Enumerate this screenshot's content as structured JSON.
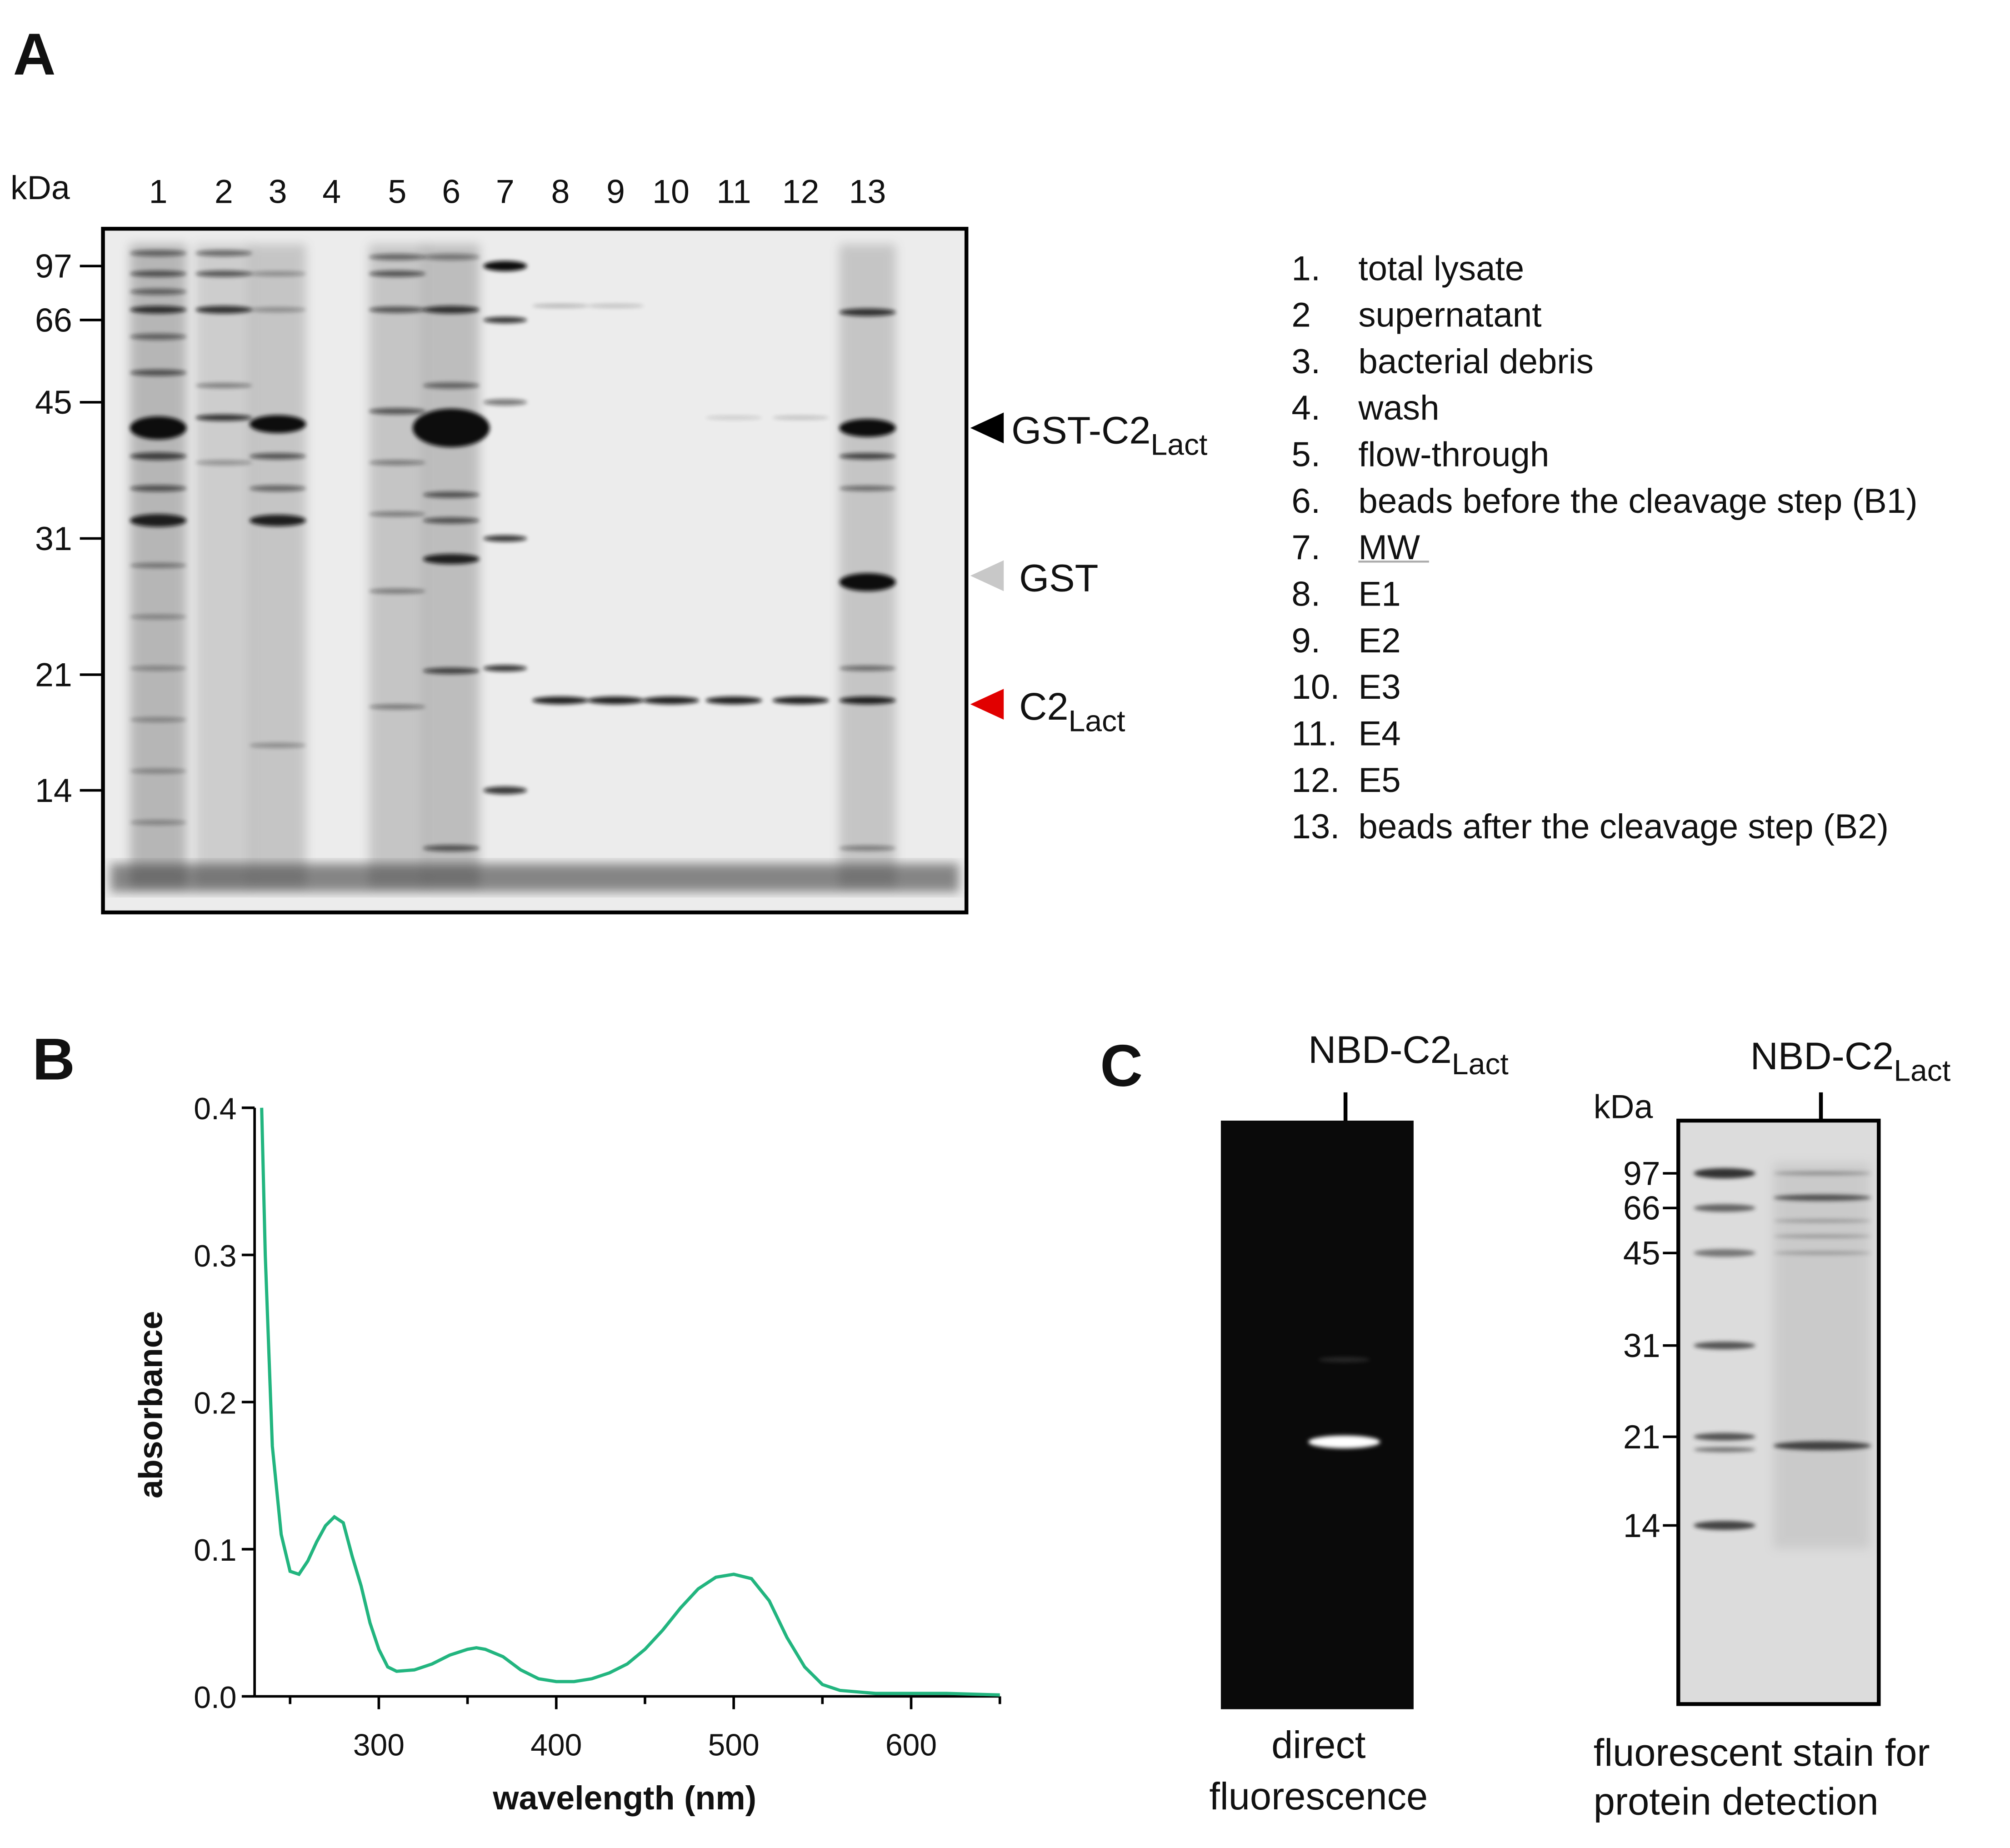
{
  "panel_labels": [
    "A",
    "B",
    "C"
  ],
  "panel_a": {
    "unit": "kDa",
    "lanes": [
      "1",
      "2",
      "3",
      "4",
      "5",
      "6",
      "7",
      "8",
      "9",
      "10",
      "11",
      "12",
      "13"
    ],
    "mw_markers": [
      "97",
      "66",
      "45",
      "31",
      "21",
      "14"
    ],
    "arrows": [
      {
        "main": "GST-C2",
        "sub": "Lact"
      },
      {
        "main": "GST"
      },
      {
        "main": "C2",
        "sub": "Lact"
      }
    ],
    "legend": [
      {
        "number": "1.",
        "label": "total lysate"
      },
      {
        "number": "2",
        "label": "supernatant"
      },
      {
        "number": "3.",
        "label": "bacterial debris"
      },
      {
        "number": "4.",
        "label": "wash"
      },
      {
        "number": "5.",
        "label": "flow-through"
      },
      {
        "number": "6.",
        "label": "beads before the cleavage step (B1)"
      },
      {
        "number": "7.",
        "label": "MW"
      },
      {
        "number": "8.",
        "label": "E1"
      },
      {
        "number": "9.",
        "label": "E2"
      },
      {
        "number": "10.",
        "label": "E3"
      },
      {
        "number": "11.",
        "label": "E4"
      },
      {
        "number": "12.",
        "label": "E5"
      },
      {
        "number": "13.",
        "label": "beads after the cleavage step (B2)"
      }
    ]
  },
  "chart_data": {
    "type": "line",
    "x_label": "wavelength (nm)",
    "y_label": "absorbance",
    "color": "#22b57f",
    "x": [
      234,
      236,
      240,
      245,
      250,
      255,
      260,
      265,
      270,
      275,
      280,
      285,
      290,
      295,
      300,
      305,
      310,
      320,
      330,
      340,
      350,
      355,
      360,
      370,
      380,
      390,
      400,
      410,
      420,
      430,
      440,
      450,
      460,
      470,
      480,
      490,
      500,
      510,
      520,
      530,
      540,
      550,
      560,
      580,
      600,
      620,
      650
    ],
    "values": [
      0.4,
      0.3,
      0.17,
      0.11,
      0.085,
      0.083,
      0.092,
      0.105,
      0.116,
      0.122,
      0.118,
      0.095,
      0.075,
      0.05,
      0.032,
      0.02,
      0.017,
      0.018,
      0.022,
      0.028,
      0.032,
      0.033,
      0.032,
      0.027,
      0.018,
      0.012,
      0.01,
      0.01,
      0.012,
      0.016,
      0.022,
      0.032,
      0.045,
      0.06,
      0.073,
      0.081,
      0.083,
      0.08,
      0.065,
      0.04,
      0.02,
      0.008,
      0.004,
      0.002,
      0.002,
      0.002,
      0.001
    ],
    "xlim": [
      230,
      650
    ],
    "xticks": [
      300,
      400,
      500,
      600
    ],
    "xminor_ticks": [
      250,
      350,
      450,
      550,
      650
    ],
    "ylim": [
      0,
      0.4
    ],
    "yticks": [
      {
        "value": 0,
        "label": "0.0"
      },
      0.1,
      0.2,
      0.3,
      0.4
    ]
  },
  "panel_c": {
    "sample": {
      "main": "NBD-C2",
      "sub": "Lact"
    },
    "left_caption": [
      "direct",
      "fluorescence"
    ],
    "unit": "kDa",
    "mw_markers": [
      "97",
      "66",
      "45",
      "31",
      "21",
      "14"
    ],
    "right_caption": [
      "fluorescent stain for",
      "protein detection"
    ]
  }
}
